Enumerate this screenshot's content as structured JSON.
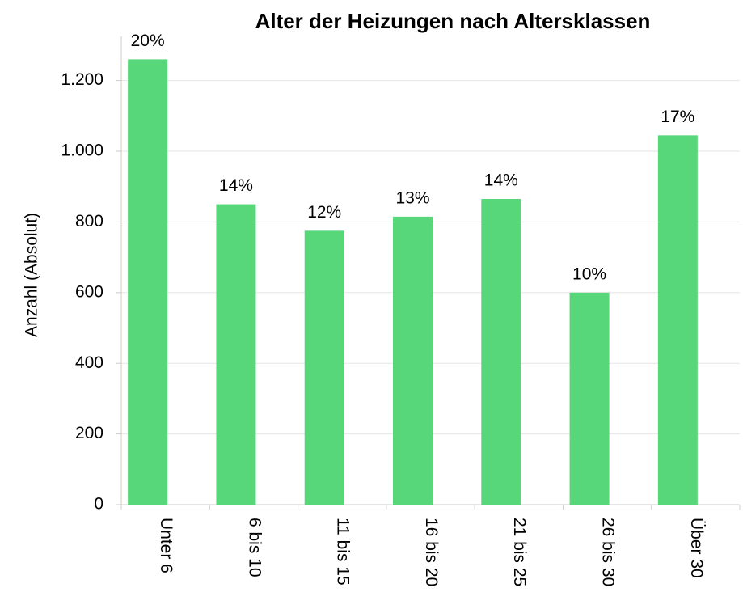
{
  "chart_data": {
    "type": "bar",
    "title": "Alter der Heizungen nach Altersklassen",
    "ylabel": "Anzahl (Absolut)",
    "categories": [
      "Unter 6",
      "6 bis 10",
      "11 bis 15",
      "16 bis 20",
      "21 bis 25",
      "26 bis 30",
      "Über 30"
    ],
    "values": [
      1260,
      850,
      775,
      815,
      865,
      600,
      1045
    ],
    "value_labels": [
      "20%",
      "14%",
      "12%",
      "13%",
      "14%",
      "10%",
      "17%"
    ],
    "color": "#58d67a",
    "ylim": [
      0,
      1325
    ],
    "yticks": [
      0,
      200,
      400,
      600,
      800,
      {
        "value": 1000,
        "label": "1.000"
      },
      {
        "value": 1200,
        "label": "1.200"
      }
    ],
    "grid": true
  }
}
